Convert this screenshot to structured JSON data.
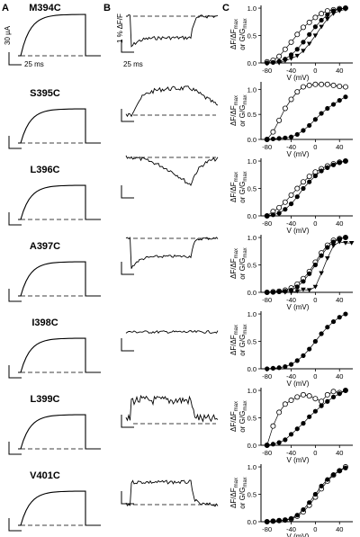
{
  "panels": {
    "a": "A",
    "b": "B",
    "c": "C"
  },
  "scale_labels": {
    "current": "30 µA",
    "time_a": "25 ms",
    "fluor": "1 % ΔF/F",
    "time_b": "25 ms"
  },
  "axis": {
    "xlabel": "V (mV)",
    "ylabel_line1": "ΔF/ΔF",
    "ylabel_sub1": "max",
    "ylabel_line2": "or G/G",
    "ylabel_sub2": "max"
  },
  "chart_data": [
    {
      "type": "scatter",
      "mutant": "M394C",
      "x_ticks": [
        "-80",
        "-40",
        "0",
        "40"
      ],
      "y_ticks": [
        "0.0",
        "0.5",
        "1.0"
      ],
      "xlim": [
        -90,
        62
      ],
      "ylim": [
        0,
        1.05
      ],
      "fluorescence": "single",
      "series": [
        {
          "marker": "open-circle",
          "x": [
            -80,
            -70,
            -60,
            -50,
            -40,
            -30,
            -20,
            -10,
            0,
            10,
            20,
            30,
            40,
            50
          ],
          "y": [
            0.02,
            0.05,
            0.12,
            0.25,
            0.38,
            0.52,
            0.65,
            0.74,
            0.83,
            0.9,
            0.95,
            0.97,
            0.99,
            1.0
          ]
        },
        {
          "marker": "filled-circle",
          "x": [
            -80,
            -70,
            -60,
            -50,
            -40,
            -30,
            -20,
            -10,
            0,
            10,
            20,
            30,
            40,
            50
          ],
          "y": [
            0.0,
            0.01,
            0.03,
            0.07,
            0.15,
            0.25,
            0.38,
            0.52,
            0.66,
            0.78,
            0.88,
            0.95,
            0.98,
            1.0
          ]
        },
        {
          "marker": "filled-triangle",
          "x": [
            -60,
            -50,
            -40,
            -30,
            -20,
            -10,
            0,
            10,
            20,
            30,
            40,
            50
          ],
          "y": [
            0.0,
            0.04,
            0.08,
            0.13,
            0.22,
            0.35,
            0.5,
            0.66,
            0.8,
            0.9,
            0.95,
            0.98
          ]
        }
      ]
    },
    {
      "type": "scatter",
      "mutant": "S395C",
      "x_ticks": [
        "-80",
        "-40",
        "0",
        "40"
      ],
      "y_ticks": [
        "0.0",
        "0.5",
        "1.0"
      ],
      "xlim": [
        -90,
        62
      ],
      "ylim": [
        0,
        1.15
      ],
      "fluorescence": "single",
      "series": [
        {
          "marker": "open-circle",
          "x": [
            -80,
            -70,
            -60,
            -50,
            -40,
            -30,
            -20,
            -10,
            0,
            10,
            20,
            30,
            40,
            50
          ],
          "y": [
            0.0,
            0.15,
            0.38,
            0.62,
            0.8,
            0.95,
            1.05,
            1.08,
            1.1,
            1.1,
            1.1,
            1.08,
            1.06,
            1.05
          ]
        },
        {
          "marker": "filled-circle",
          "x": [
            -80,
            -70,
            -60,
            -50,
            -40,
            -30,
            -20,
            -10,
            0,
            10,
            20,
            30,
            40,
            50
          ],
          "y": [
            0.0,
            0.01,
            0.02,
            0.03,
            0.05,
            0.1,
            0.18,
            0.28,
            0.4,
            0.52,
            0.62,
            0.7,
            0.78,
            0.85
          ]
        }
      ]
    },
    {
      "type": "scatter",
      "mutant": "L396C",
      "x_ticks": [
        "-80",
        "-40",
        "0",
        "40"
      ],
      "y_ticks": [
        "0.0",
        "0.5",
        "1.0"
      ],
      "xlim": [
        -90,
        62
      ],
      "ylim": [
        0,
        1.05
      ],
      "fluorescence": "single",
      "series": [
        {
          "marker": "open-circle",
          "x": [
            -80,
            -70,
            -60,
            -50,
            -40,
            -30,
            -20,
            -10,
            0,
            10,
            20,
            30,
            40,
            50
          ],
          "y": [
            0.0,
            0.08,
            0.15,
            0.25,
            0.38,
            0.5,
            0.62,
            0.72,
            0.8,
            0.86,
            0.91,
            0.95,
            0.98,
            1.0
          ]
        },
        {
          "marker": "filled-circle",
          "x": [
            -80,
            -70,
            -60,
            -50,
            -40,
            -30,
            -20,
            -10,
            0,
            10,
            20,
            30,
            40,
            50
          ],
          "y": [
            0.0,
            0.02,
            0.05,
            0.12,
            0.22,
            0.35,
            0.5,
            0.62,
            0.73,
            0.82,
            0.88,
            0.93,
            0.97,
            1.0
          ]
        }
      ]
    },
    {
      "type": "scatter",
      "mutant": "A397C",
      "x_ticks": [
        "-80",
        "-40",
        "0",
        "40"
      ],
      "y_ticks": [
        "0.0",
        "0.5",
        "1.0"
      ],
      "xlim": [
        -90,
        62
      ],
      "ylim": [
        0,
        1.05
      ],
      "fluorescence": "double",
      "series": [
        {
          "marker": "open-circle",
          "x": [
            -80,
            -70,
            -60,
            -50,
            -40,
            -30,
            -20,
            -10,
            0,
            10,
            20,
            30,
            40,
            50
          ],
          "y": [
            0.0,
            0.01,
            0.02,
            0.04,
            0.08,
            0.15,
            0.25,
            0.38,
            0.55,
            0.72,
            0.86,
            0.95,
            0.98,
            1.0
          ]
        },
        {
          "marker": "filled-circle",
          "x": [
            -80,
            -70,
            -60,
            -50,
            -40,
            -30,
            -20,
            -10,
            0,
            10,
            20,
            30,
            40,
            50
          ],
          "y": [
            0.0,
            0.0,
            0.01,
            0.02,
            0.04,
            0.1,
            0.2,
            0.34,
            0.5,
            0.67,
            0.82,
            0.92,
            0.97,
            1.0
          ]
        },
        {
          "marker": "filled-triangle",
          "x": [
            -50,
            -40,
            -30,
            -20,
            -10,
            0,
            10,
            20,
            30,
            40,
            50,
            60
          ],
          "y": [
            0.0,
            0.0,
            0.02,
            0.05,
            0.04,
            0.1,
            0.35,
            0.62,
            0.85,
            0.92,
            0.9,
            0.9
          ]
        }
      ]
    },
    {
      "type": "scatter",
      "mutant": "I398C",
      "x_ticks": [
        "-80",
        "-40",
        "0",
        "40"
      ],
      "y_ticks": [
        "0.0",
        "0.5",
        "1.0"
      ],
      "xlim": [
        -90,
        62
      ],
      "ylim": [
        0,
        1.05
      ],
      "fluorescence": "none",
      "series": [
        {
          "marker": "filled-circle",
          "x": [
            -80,
            -70,
            -60,
            -50,
            -40,
            -30,
            -20,
            -10,
            0,
            10,
            20,
            30,
            40,
            50
          ],
          "y": [
            0.0,
            0.01,
            0.02,
            0.04,
            0.08,
            0.15,
            0.24,
            0.36,
            0.5,
            0.64,
            0.76,
            0.86,
            0.94,
            1.0
          ]
        }
      ]
    },
    {
      "type": "scatter",
      "mutant": "L399C",
      "x_ticks": [
        "-80",
        "-40",
        "0",
        "40"
      ],
      "y_ticks": [
        "0.0",
        "0.5",
        "1.0"
      ],
      "xlim": [
        -90,
        62
      ],
      "ylim": [
        0,
        1.05
      ],
      "fluorescence": "single",
      "series": [
        {
          "marker": "open-circle",
          "x": [
            -80,
            -70,
            -60,
            -50,
            -40,
            -30,
            -20,
            -10,
            0,
            10,
            20,
            30,
            40,
            50
          ],
          "y": [
            0.0,
            0.35,
            0.6,
            0.75,
            0.82,
            0.88,
            0.92,
            0.9,
            0.85,
            0.8,
            0.92,
            0.98,
            0.96,
            1.0
          ]
        },
        {
          "marker": "filled-circle",
          "x": [
            -80,
            -70,
            -60,
            -50,
            -40,
            -30,
            -20,
            -10,
            0,
            10,
            20,
            30,
            40,
            50
          ],
          "y": [
            0.0,
            0.02,
            0.05,
            0.1,
            0.2,
            0.3,
            0.4,
            0.52,
            0.62,
            0.72,
            0.8,
            0.88,
            0.94,
            1.0
          ]
        }
      ]
    },
    {
      "type": "scatter",
      "mutant": "V401C",
      "x_ticks": [
        "-80",
        "-40",
        "0",
        "40"
      ],
      "y_ticks": [
        "0.0",
        "0.5",
        "1.0"
      ],
      "xlim": [
        -90,
        62
      ],
      "ylim": [
        0,
        1.05
      ],
      "fluorescence": "single",
      "series": [
        {
          "marker": "open-circle",
          "x": [
            -80,
            -70,
            -60,
            -50,
            -40,
            -30,
            -20,
            -10,
            0,
            10,
            20,
            30,
            40,
            50
          ],
          "y": [
            0.0,
            0.01,
            0.02,
            0.03,
            0.05,
            0.1,
            0.18,
            0.3,
            0.45,
            0.6,
            0.74,
            0.85,
            0.93,
            1.0
          ]
        },
        {
          "marker": "filled-circle",
          "x": [
            -80,
            -70,
            -60,
            -50,
            -40,
            -30,
            -20,
            -10,
            0,
            10,
            20,
            30,
            40,
            50
          ],
          "y": [
            0.0,
            0.01,
            0.02,
            0.03,
            0.06,
            0.12,
            0.22,
            0.35,
            0.5,
            0.65,
            0.77,
            0.86,
            0.93,
            0.98
          ]
        }
      ]
    }
  ]
}
